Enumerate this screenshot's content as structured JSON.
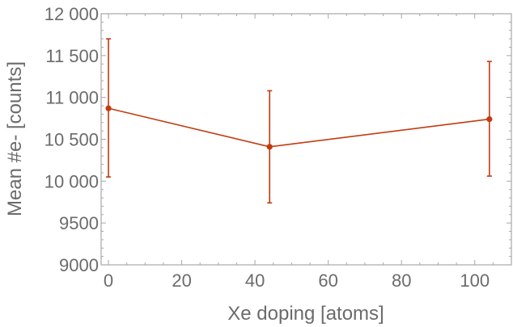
{
  "chart_data": {
    "type": "line",
    "xlabel": "Xe doping [atoms]",
    "ylabel": "Mean #e- [counts]",
    "xlim": [
      -2,
      110
    ],
    "ylim": [
      9000,
      12000
    ],
    "x_ticks": [
      0,
      20,
      40,
      60,
      80,
      100
    ],
    "y_ticks": [
      9000,
      9500,
      10000,
      10500,
      11000,
      11500,
      12000
    ],
    "x_tick_labels": [
      "0",
      "20",
      "40",
      "60",
      "80",
      "100"
    ],
    "y_tick_labels": [
      "9000",
      "9500",
      "10 000",
      "10 500",
      "11 000",
      "11 500",
      "12 000"
    ],
    "grid": false,
    "color": "#c23b10",
    "series": [
      {
        "x": [
          0,
          44,
          104
        ],
        "y": [
          10870,
          10410,
          10740
        ],
        "err_low": [
          10050,
          9740,
          10060
        ],
        "err_high": [
          11700,
          11080,
          11430
        ]
      }
    ]
  }
}
